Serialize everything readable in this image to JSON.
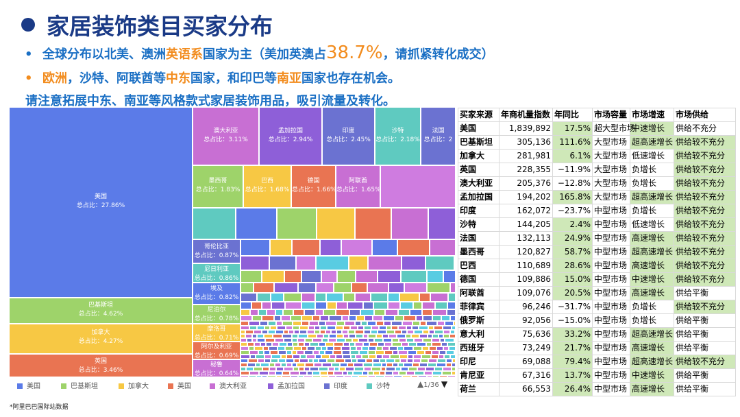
{
  "title": "家居装饰类目买家分布",
  "bullets": [
    {
      "pre": "全球分布以北美、澳洲",
      "hl": "英语系",
      "mid": "国家为主（美加英澳占",
      "big": "38.7%",
      "post": "，请抓紧转化成交）"
    },
    {
      "hl1": "欧洲",
      "mid1": "，沙特、阿联酋等",
      "hl2": "中东",
      "mid2": "国家，和印巴等",
      "hl3": "南亚",
      "post": "国家也存在机会。"
    }
  ],
  "note": "请注意拓展中东、南亚等风格款式家居装饰用品，吸引流量及转化。",
  "colors": {
    "title": "#1a3a86",
    "blue_text": "#1a6fc4",
    "orange": "#f28c1e",
    "table_green": "#cfe8b8",
    "series": [
      "#5b7be8",
      "#9ed36a",
      "#f7c844",
      "#e97452",
      "#c86fd3",
      "#8e5fd8",
      "#6b72d1",
      "#5fcac0",
      "#cf7ce0",
      "#59cce2"
    ]
  },
  "treemap": {
    "tiles": [
      {
        "name": "美国",
        "share": "总占比：27.86%"
      },
      {
        "name": "巴基斯坦",
        "share": "总占比：4.62%"
      },
      {
        "name": "加拿大",
        "share": "总占比：4.27%"
      },
      {
        "name": "英国",
        "share": "总占比：3.46%"
      },
      {
        "name": "澳大利亚",
        "share": "总占比：3.11%"
      },
      {
        "name": "孟加拉国",
        "share": "总占比：2.94%"
      },
      {
        "name": "印度",
        "share": "总占比：2.45%"
      },
      {
        "name": "沙特",
        "share": "总占比：2.18%"
      },
      {
        "name": "法国",
        "share": "总占比：2"
      },
      {
        "name": "墨西哥",
        "share": "总占比：1.83%"
      },
      {
        "name": "巴西",
        "share": "总占比：1.68%"
      },
      {
        "name": "德国",
        "share": "总占比：1.66%"
      },
      {
        "name": "阿联酋",
        "share": "总占比：1.65%"
      },
      {
        "name": "哥伦比亚",
        "share": "总占比：0.87%"
      },
      {
        "name": "尼日利亚",
        "share": "总占比：0.86%"
      },
      {
        "name": "埃及",
        "share": "总占比：0.82%"
      },
      {
        "name": "尼泊尔",
        "share": "总占比：0.78%"
      },
      {
        "name": "摩洛哥",
        "share": "总占比：0.71%"
      },
      {
        "name": "阿尔及利亚",
        "share": "总占比：0.69%"
      },
      {
        "name": "秘鲁",
        "share": "总占比：0.64%"
      }
    ],
    "legend": [
      "美国",
      "巴基斯坦",
      "加拿大",
      "英国",
      "澳大利亚",
      "孟加拉国",
      "印度",
      "沙特"
    ],
    "pager": "1/36"
  },
  "table": {
    "headers": [
      "买家来源",
      "年商机量指数",
      "年同比",
      "市场容量",
      "市场增速",
      "市场供给"
    ],
    "rows": [
      [
        "美国",
        "1,839,892",
        "17.5%",
        "超大型市场",
        "中速增长",
        "供给不充分"
      ],
      [
        "巴基斯坦",
        "305,136",
        "111.6%",
        "大型市场",
        "超高速增长",
        "供给较不充分"
      ],
      [
        "加拿大",
        "281,981",
        "6.1%",
        "大型市场",
        "低速增长",
        "供给较不充分"
      ],
      [
        "英国",
        "228,355",
        "−11.9%",
        "大型市场",
        "负增长",
        "供给较不充分"
      ],
      [
        "澳大利亚",
        "205,376",
        "−12.8%",
        "大型市场",
        "负增长",
        "供给较不充分"
      ],
      [
        "孟加拉国",
        "194,202",
        "165.8%",
        "大型市场",
        "超高速增长",
        "供给较不充分"
      ],
      [
        "印度",
        "162,072",
        "−23.7%",
        "中型市场",
        "负增长",
        "供给较不充分"
      ],
      [
        "沙特",
        "144,205",
        "2.4%",
        "中型市场",
        "低速增长",
        "供给较不充分"
      ],
      [
        "法国",
        "132,113",
        "24.9%",
        "中型市场",
        "高速增长",
        "供给较不充分"
      ],
      [
        "墨西哥",
        "120,827",
        "58.7%",
        "中型市场",
        "超高速增长",
        "供给较不充分"
      ],
      [
        "巴西",
        "110,689",
        "28.6%",
        "中型市场",
        "高速增长",
        "供给较不充分"
      ],
      [
        "德国",
        "109,886",
        "15.0%",
        "中型市场",
        "中速增长",
        "供给较不充分"
      ],
      [
        "阿联酋",
        "109,076",
        "20.5%",
        "中型市场",
        "高速增长",
        "供给平衡"
      ],
      [
        "菲律宾",
        "96,246",
        "−31.7%",
        "中型市场",
        "负增长",
        "供给较不充分"
      ],
      [
        "俄罗斯",
        "92,056",
        "−15.0%",
        "中型市场",
        "负增长",
        "供给平衡"
      ],
      [
        "意大利",
        "75,636",
        "33.2%",
        "中型市场",
        "超高速增长",
        "供给平衡"
      ],
      [
        "西班牙",
        "73,249",
        "21.7%",
        "中型市场",
        "高速增长",
        "供给平衡"
      ],
      [
        "印尼",
        "69,088",
        "79.4%",
        "中型市场",
        "超高速增长",
        "供给较不充分"
      ],
      [
        "肯尼亚",
        "67,316",
        "13.7%",
        "中型市场",
        "中速增长",
        "供给平衡"
      ],
      [
        "荷兰",
        "66,553",
        "26.4%",
        "中型市场",
        "高速增长",
        "供给平衡"
      ]
    ]
  },
  "source": "*阿里巴巴国际站数据"
}
